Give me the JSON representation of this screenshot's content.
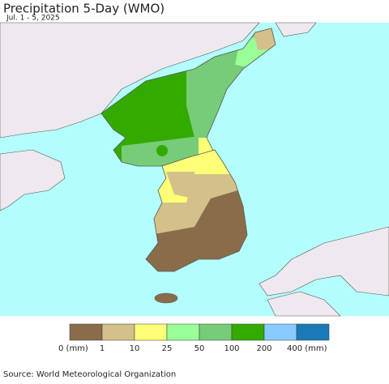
{
  "header": {
    "title": "Precipitation 5-Day (WMO)",
    "subtitle": "Jul. 1 - 5, 2025"
  },
  "legend": {
    "colors": [
      "#8b6c4a",
      "#d4c08a",
      "#ffff77",
      "#99ff99",
      "#77cc77",
      "#33aa00",
      "#88ccff",
      "#1a7ab8"
    ],
    "labels": [
      "0 (mm)",
      "1",
      "10",
      "25",
      "50",
      "100",
      "200",
      "400 (mm)"
    ]
  },
  "footer": {
    "source": "Source: World Meteorological Organization"
  }
}
